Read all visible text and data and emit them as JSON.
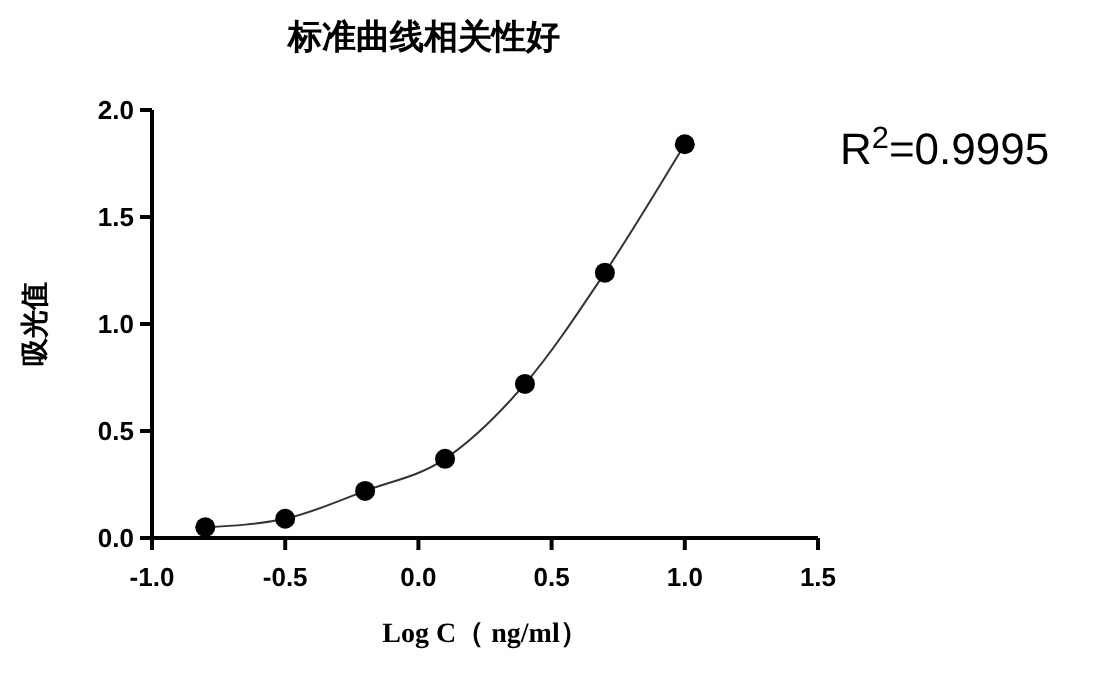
{
  "chart_data": {
    "type": "scatter",
    "title": "标准曲线相关性好",
    "xlabel": "Log C（ ng/ml）",
    "ylabel": "吸光值",
    "xlim": [
      -1.0,
      1.5
    ],
    "xticks": [
      {
        "value": -1,
        "label": "-1.0"
      },
      {
        "value": -0.5,
        "label": "-0.5"
      },
      {
        "value": 0,
        "label": "0.0"
      },
      {
        "value": 0.5,
        "label": "0.5"
      },
      {
        "value": 1,
        "label": "1.0"
      },
      {
        "value": 1.5,
        "label": "1.5"
      }
    ],
    "ylim": [
      0,
      2.0
    ],
    "yticks": [
      {
        "value": 0,
        "label": "0.0"
      },
      {
        "value": 0.5,
        "label": "0.5"
      },
      {
        "value": 1,
        "label": "1.0"
      },
      {
        "value": 1.5,
        "label": "1.5"
      },
      {
        "value": 2,
        "label": "2.0"
      }
    ],
    "grid": false,
    "marker": "circle",
    "annotations": [
      "R$^{2}$=0.9995"
    ],
    "series": [
      {
        "color": "#000000",
        "x": [
          -0.8,
          -0.5,
          -0.2,
          0.1,
          0.4,
          0.7,
          1.0
        ],
        "values": [
          0.05,
          0.09,
          0.22,
          0.37,
          0.72,
          1.24,
          1.84
        ]
      },
      {
        "type": "line",
        "color": "#333333",
        "line_style": "solid",
        "marker": "none",
        "x": [
          -0.8,
          -0.5,
          -0.2,
          0.1,
          0.4,
          0.7,
          1.0
        ],
        "values": [
          0.05,
          0.09,
          0.22,
          0.37,
          0.72,
          1.24,
          1.84
        ]
      }
    ]
  }
}
